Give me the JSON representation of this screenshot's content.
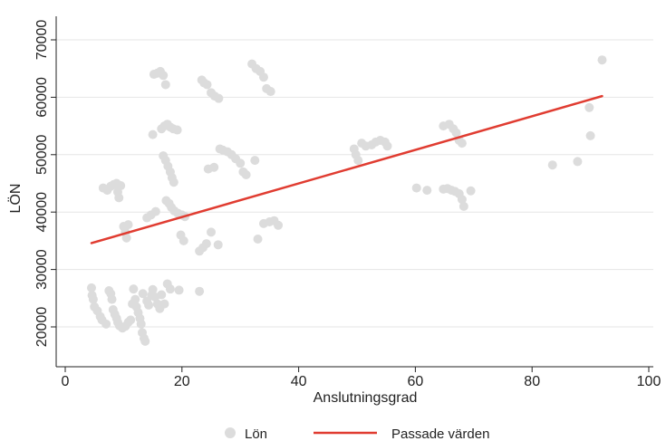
{
  "chart_data": {
    "type": "scatter",
    "xlabel": "Anslutningsgrad",
    "ylabel": "LÖN",
    "xlim": [
      0,
      100
    ],
    "ylim": [
      15000,
      72000
    ],
    "x_ticks": [
      0,
      20,
      40,
      60,
      80,
      100
    ],
    "y_ticks": [
      20000,
      30000,
      40000,
      50000,
      60000,
      70000
    ],
    "grid": true,
    "legend_position": "bottom",
    "colors": {
      "points": "#dcdcdc",
      "fit_line": "#e03c31",
      "grid": "#e6e6e6",
      "axis": "#222222"
    },
    "series": [
      {
        "name": "Lön",
        "kind": "scatter",
        "points": [
          [
            4.5,
            26800
          ],
          [
            4.6,
            25500
          ],
          [
            4.8,
            24800
          ],
          [
            5.0,
            23500
          ],
          [
            5.5,
            22800
          ],
          [
            6.0,
            21800
          ],
          [
            6.3,
            21200
          ],
          [
            7.0,
            20500
          ],
          [
            7.5,
            26300
          ],
          [
            7.8,
            25800
          ],
          [
            8.0,
            24800
          ],
          [
            8.2,
            23000
          ],
          [
            8.5,
            22200
          ],
          [
            8.8,
            21500
          ],
          [
            9.0,
            20800
          ],
          [
            9.3,
            20200
          ],
          [
            9.8,
            19800
          ],
          [
            10.3,
            20100
          ],
          [
            10.8,
            20800
          ],
          [
            11.2,
            21200
          ],
          [
            11.5,
            24000
          ],
          [
            11.7,
            26600
          ],
          [
            12.0,
            24800
          ],
          [
            12.2,
            23500
          ],
          [
            12.5,
            22500
          ],
          [
            12.8,
            21500
          ],
          [
            13.0,
            20500
          ],
          [
            13.2,
            19000
          ],
          [
            13.5,
            18000
          ],
          [
            13.7,
            17500
          ],
          [
            13.3,
            25800
          ],
          [
            14.0,
            24500
          ],
          [
            14.3,
            23800
          ],
          [
            14.8,
            25500
          ],
          [
            15.0,
            26500
          ],
          [
            15.4,
            25200
          ],
          [
            15.8,
            24000
          ],
          [
            16.2,
            23200
          ],
          [
            16.5,
            25600
          ],
          [
            17.0,
            24000
          ],
          [
            17.5,
            27500
          ],
          [
            18.0,
            26600
          ],
          [
            19.5,
            26400
          ],
          [
            23.0,
            26200
          ],
          [
            6.5,
            44200
          ],
          [
            7.2,
            43800
          ],
          [
            7.8,
            44500
          ],
          [
            8.3,
            44800
          ],
          [
            8.8,
            45000
          ],
          [
            9.0,
            43500
          ],
          [
            9.2,
            42500
          ],
          [
            9.5,
            44600
          ],
          [
            10.0,
            37500
          ],
          [
            10.3,
            36500
          ],
          [
            10.5,
            35500
          ],
          [
            10.8,
            37800
          ],
          [
            14.0,
            39000
          ],
          [
            14.7,
            39500
          ],
          [
            15.5,
            40100
          ],
          [
            15.0,
            53500
          ],
          [
            15.2,
            64000
          ],
          [
            15.8,
            64200
          ],
          [
            16.3,
            64500
          ],
          [
            16.8,
            63800
          ],
          [
            17.2,
            62200
          ],
          [
            16.5,
            54500
          ],
          [
            17.0,
            55000
          ],
          [
            17.5,
            55300
          ],
          [
            18.0,
            54800
          ],
          [
            18.5,
            54500
          ],
          [
            19.2,
            54300
          ],
          [
            16.8,
            49800
          ],
          [
            17.2,
            49000
          ],
          [
            17.6,
            48000
          ],
          [
            18.0,
            47000
          ],
          [
            18.3,
            46000
          ],
          [
            18.6,
            45200
          ],
          [
            17.3,
            42000
          ],
          [
            17.8,
            41500
          ],
          [
            18.2,
            40800
          ],
          [
            18.7,
            40200
          ],
          [
            19.3,
            39800
          ],
          [
            20.0,
            39500
          ],
          [
            20.5,
            39200
          ],
          [
            19.8,
            36000
          ],
          [
            20.3,
            35000
          ],
          [
            23.0,
            33200
          ],
          [
            23.6,
            33800
          ],
          [
            24.2,
            34500
          ],
          [
            25.0,
            36500
          ],
          [
            26.2,
            34300
          ],
          [
            23.4,
            63000
          ],
          [
            23.8,
            62500
          ],
          [
            24.3,
            62200
          ],
          [
            25.0,
            60800
          ],
          [
            25.6,
            60200
          ],
          [
            26.3,
            59800
          ],
          [
            26.5,
            51000
          ],
          [
            27.0,
            50800
          ],
          [
            27.8,
            50500
          ],
          [
            28.5,
            50000
          ],
          [
            29.2,
            49300
          ],
          [
            30.0,
            48500
          ],
          [
            30.5,
            47000
          ],
          [
            31.0,
            46500
          ],
          [
            24.5,
            47500
          ],
          [
            25.5,
            47800
          ],
          [
            32.0,
            65800
          ],
          [
            32.7,
            65000
          ],
          [
            33.4,
            64500
          ],
          [
            34.0,
            63500
          ],
          [
            34.5,
            61500
          ],
          [
            35.2,
            61000
          ],
          [
            32.5,
            49000
          ],
          [
            33.0,
            35300
          ],
          [
            34.0,
            38000
          ],
          [
            35.0,
            38300
          ],
          [
            35.8,
            38500
          ],
          [
            36.5,
            37700
          ],
          [
            49.5,
            51000
          ],
          [
            49.8,
            50000
          ],
          [
            50.2,
            49000
          ],
          [
            50.8,
            52000
          ],
          [
            51.5,
            51500
          ],
          [
            52.5,
            51700
          ],
          [
            53.2,
            52200
          ],
          [
            54.0,
            52500
          ],
          [
            54.8,
            52200
          ],
          [
            55.2,
            51500
          ],
          [
            60.2,
            44200
          ],
          [
            62.0,
            43800
          ],
          [
            64.8,
            44000
          ],
          [
            65.5,
            44100
          ],
          [
            66.2,
            43800
          ],
          [
            66.8,
            43600
          ],
          [
            67.5,
            43200
          ],
          [
            68.0,
            42200
          ],
          [
            68.3,
            41000
          ],
          [
            69.5,
            43700
          ],
          [
            64.8,
            55000
          ],
          [
            65.8,
            55300
          ],
          [
            66.5,
            54500
          ],
          [
            67.0,
            53800
          ],
          [
            67.5,
            52500
          ],
          [
            68.0,
            52000
          ],
          [
            83.5,
            48200
          ],
          [
            87.8,
            48800
          ],
          [
            89.8,
            58200
          ],
          [
            90.0,
            53300
          ],
          [
            92.0,
            66500
          ]
        ]
      },
      {
        "name": "Passade värden",
        "kind": "line",
        "points": [
          [
            4.5,
            34600
          ],
          [
            92.0,
            60200
          ]
        ]
      }
    ]
  }
}
